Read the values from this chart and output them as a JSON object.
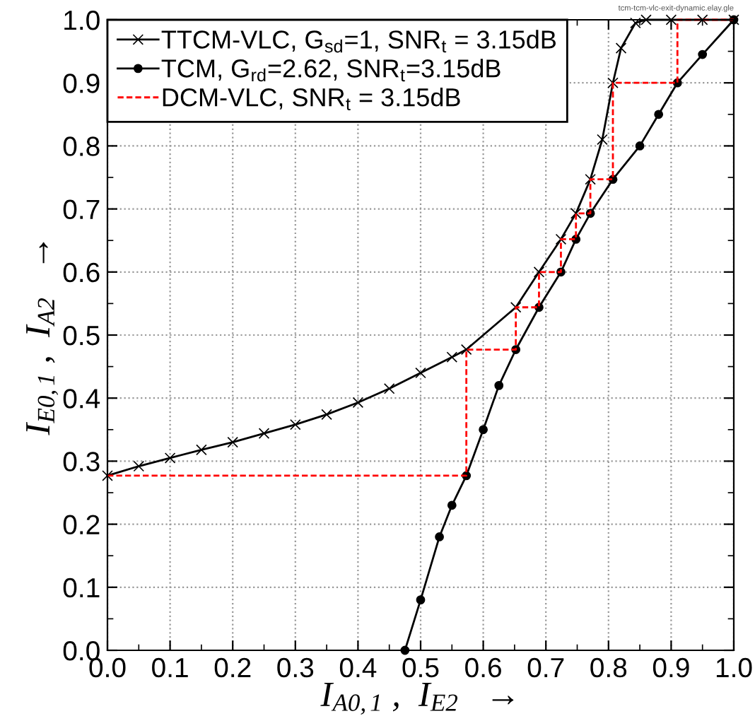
{
  "chart_data": {
    "type": "line",
    "xlabel": "I$_{A0,1}$ ,  I$_{E2}$   →",
    "ylabel": "I$_{E0,1}$ ,  I$_{A2}$   →",
    "annotations": [
      "tcm-tcm-vlc-exit-dynamic.elay.gle"
    ],
    "xlim": [
      0,
      1
    ],
    "ylim": [
      0,
      1
    ],
    "xticks": [
      {
        "value": 0,
        "label": "0.0"
      },
      0.1,
      0.2,
      0.3,
      0.4,
      0.5,
      0.6,
      0.7,
      0.8,
      0.9,
      {
        "value": 1,
        "label": "1.0"
      }
    ],
    "yticks": [
      {
        "value": 0,
        "label": "0.0"
      },
      0.1,
      0.2,
      0.3,
      0.4,
      0.5,
      0.6,
      0.7,
      0.8,
      0.9,
      {
        "value": 1,
        "label": "1.0"
      }
    ],
    "grid": true,
    "legend": "top left",
    "series": [
      {
        "name": "TTCM-VLC, G$_{sd}$=1, SNR$_{t}$ = 3.15dB",
        "color": "#000000",
        "marker": "cross",
        "line_style": "solid",
        "x": [
          0,
          0.05,
          0.1,
          0.15,
          0.2,
          0.25,
          0.3,
          0.35,
          0.4,
          0.45,
          0.5,
          0.55,
          0.573,
          0.652,
          0.689,
          0.724,
          0.748,
          0.771,
          0.79,
          0.807,
          0.82,
          0.843,
          0.86,
          0.9,
          0.95,
          1.0
        ],
        "values": [
          0.277,
          0.292,
          0.305,
          0.318,
          0.33,
          0.344,
          0.358,
          0.374,
          0.393,
          0.415,
          0.44,
          0.465,
          0.477,
          0.544,
          0.6,
          0.652,
          0.693,
          0.747,
          0.81,
          0.9,
          0.955,
          0.995,
          1.0,
          1.0,
          1.0,
          1.0
        ]
      },
      {
        "name": "TCM, G$_{rd}$=2.62, SNR$_{t}$=3.15dB",
        "color": "#000000",
        "marker": "circle",
        "line_style": "solid",
        "x": [
          0.475,
          0.5,
          0.53,
          0.55,
          0.573,
          0.6,
          0.625,
          0.652,
          0.689,
          0.724,
          0.748,
          0.771,
          0.807,
          0.85,
          0.88,
          0.91,
          0.95,
          1.0
        ],
        "values": [
          0,
          0.08,
          0.18,
          0.23,
          0.277,
          0.35,
          0.42,
          0.477,
          0.544,
          0.6,
          0.652,
          0.693,
          0.747,
          0.8,
          0.85,
          0.9,
          0.945,
          1.0
        ]
      },
      {
        "name": "DCM-VLC, SNR$_{t}$ = 3.15dB",
        "color": "#ff0000",
        "marker": "none",
        "line_style": "dashed",
        "x": [
          0,
          0.573,
          0.573,
          0.652,
          0.652,
          0.689,
          0.689,
          0.724,
          0.724,
          0.748,
          0.748,
          0.771,
          0.771,
          0.807,
          0.807,
          0.91,
          0.91,
          1.0
        ],
        "values": [
          0.277,
          0.277,
          0.477,
          0.477,
          0.544,
          0.544,
          0.6,
          0.6,
          0.652,
          0.652,
          0.693,
          0.693,
          0.747,
          0.747,
          0.9,
          0.9,
          1.0,
          1.0
        ]
      }
    ]
  }
}
